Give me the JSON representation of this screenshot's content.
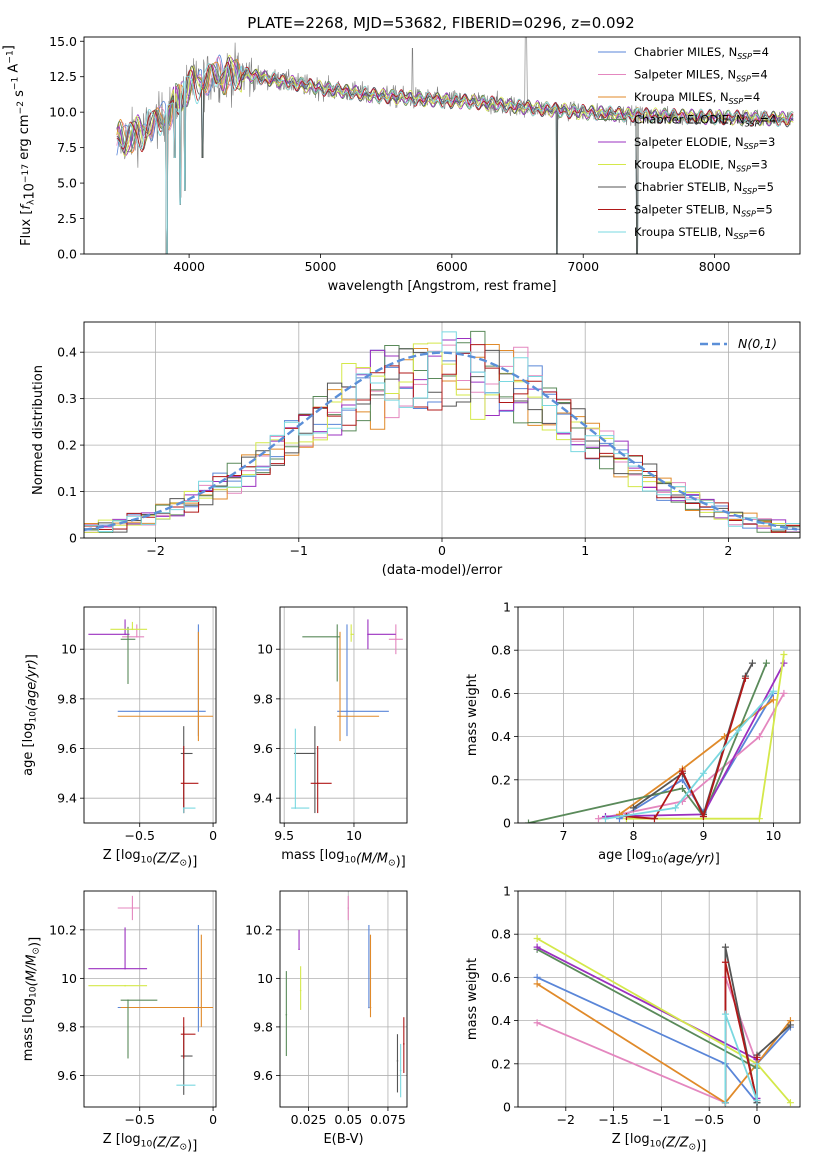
{
  "figure": {
    "title": "PLATE=2268, MJD=53682, FIBERID=0296, z=0.092"
  },
  "series": [
    {
      "name": "Chabrier MILES, N_{SSP}=4",
      "label": "Chabrier MILES, N",
      "ssp": "4",
      "color": "#5a86d8"
    },
    {
      "name": "Salpeter MILES, N_{SSP}=4",
      "label": "Salpeter MILES, N",
      "ssp": "4",
      "color": "#e487bf"
    },
    {
      "name": "Kroupa MILES, N_{SSP}=4",
      "label": "Kroupa MILES, N",
      "ssp": "4",
      "color": "#e08a2a"
    },
    {
      "name": "Chabrier ELODIE, N_{SSP}=4",
      "label": "Chabrier ELODIE, N",
      "ssp": "4",
      "color": "#5a8a5a"
    },
    {
      "name": "Salpeter ELODIE, N_{SSP}=3",
      "label": "Salpeter ELODIE, N",
      "ssp": "3",
      "color": "#9b30c0"
    },
    {
      "name": "Kroupa ELODIE, N_{SSP}=3",
      "label": "Kroupa ELODIE, N",
      "ssp": "3",
      "color": "#d4e84a"
    },
    {
      "name": "Chabrier STELIB, N_{SSP}=5",
      "label": "Chabrier STELIB, N",
      "ssp": "5",
      "color": "#555555"
    },
    {
      "name": "Salpeter STELIB, N_{SSP}=5",
      "label": "Salpeter STELIB, N",
      "ssp": "5",
      "color": "#b01818"
    },
    {
      "name": "Kroupa STELIB, N_{SSP}=6",
      "label": "Kroupa STELIB, N",
      "ssp": "6",
      "color": "#7ad8e0"
    }
  ],
  "chart_data": [
    {
      "id": "spectrum",
      "type": "line",
      "xlabel": "wavelength [Angstrom, rest frame]",
      "ylabel": "Flux [f_λ 10^-17 erg cm^-2 s^-1 A^-1]",
      "xlim": [
        3200,
        8650
      ],
      "ylim": [
        0,
        15.3
      ],
      "xticks": [
        4000,
        5000,
        6000,
        7000,
        8000
      ],
      "yticks": [
        0.0,
        2.5,
        5.0,
        7.5,
        10.0,
        12.5,
        15.0
      ],
      "continuum": {
        "x": [
          3450,
          3600,
          3800,
          4000,
          4200,
          4400,
          4700,
          5000,
          5400,
          5800,
          6200,
          6600,
          7000,
          7400,
          7800,
          8200,
          8600
        ],
        "y": [
          8.0,
          8.4,
          9.6,
          11.8,
          12.6,
          12.7,
          12.2,
          11.7,
          11.2,
          10.9,
          10.7,
          10.3,
          10.0,
          9.8,
          9.7,
          9.6,
          9.5
        ]
      },
      "absorption_features": [
        {
          "x": 3830,
          "y": 0.0
        },
        {
          "x": 3890,
          "y": 6.8
        },
        {
          "x": 3933,
          "y": 3.5
        },
        {
          "x": 3968,
          "y": 4.5
        },
        {
          "x": 4102,
          "y": 6.8
        },
        {
          "x": 6800,
          "y": 0.0
        },
        {
          "x": 7410,
          "y": 0.0
        }
      ],
      "legend_position": "upper right",
      "grid": false
    },
    {
      "id": "residual-histogram",
      "type": "line",
      "xlabel": "(data-model)/error",
      "ylabel": "Normed distribution",
      "xlim": [
        -2.5,
        2.5
      ],
      "ylim": [
        0,
        0.465
      ],
      "xticks": [
        -2,
        -1,
        0,
        1,
        2
      ],
      "yticks": [
        0.0,
        0.1,
        0.2,
        0.3,
        0.4
      ],
      "bin_width": 0.1,
      "gaussian": {
        "label": "N(0,1)",
        "mu": 0,
        "sigma": 1
      },
      "legend_position": "upper right",
      "grid": true
    },
    {
      "id": "age-vs-z",
      "type": "scatter",
      "xlabel": "Z [log10(Z/Z⊙)]",
      "ylabel": "age [log10(age/yr)]",
      "xlim": [
        -0.88,
        0.02
      ],
      "ylim": [
        9.3,
        10.17
      ],
      "xticks": [
        -0.5,
        0.0
      ],
      "yticks": [
        9.4,
        9.6,
        9.8,
        10.0
      ],
      "points": [
        {
          "s": 0,
          "x": -0.1,
          "xe": [
            0.55,
            0.05
          ],
          "y": 9.75,
          "ye": [
            0.1,
            0.35
          ]
        },
        {
          "s": 1,
          "x": -0.52,
          "xe": [
            0.1,
            0.05
          ],
          "y": 10.05,
          "ye": [
            0.0,
            0.05
          ]
        },
        {
          "s": 2,
          "x": -0.1,
          "xe": [
            0.55,
            0.1
          ],
          "y": 9.73,
          "ye": [
            0.1,
            0.34
          ]
        },
        {
          "s": 3,
          "x": -0.58,
          "xe": [
            0.05,
            0.05
          ],
          "y": 10.04,
          "ye": [
            0.18,
            0.05
          ]
        },
        {
          "s": 4,
          "x": -0.6,
          "xe": [
            0.25,
            0.03
          ],
          "y": 10.06,
          "ye": [
            0.0,
            0.06
          ]
        },
        {
          "s": 5,
          "x": -0.55,
          "xe": [
            0.15,
            0.1
          ],
          "y": 10.08,
          "ye": [
            0.0,
            0.03
          ]
        },
        {
          "s": 6,
          "x": -0.2,
          "xe": [
            0.02,
            0.06
          ],
          "y": 9.58,
          "ye": [
            0.24,
            0.11
          ]
        },
        {
          "s": 7,
          "x": -0.2,
          "xe": [
            0.02,
            0.1
          ],
          "y": 9.46,
          "ye": [
            0.12,
            0.15
          ]
        },
        {
          "s": 8,
          "x": -0.2,
          "xe": [
            0.0,
            0.08
          ],
          "y": 9.36,
          "ye": [
            0.02,
            0.0
          ]
        }
      ],
      "grid": true
    },
    {
      "id": "age-vs-mass",
      "type": "scatter",
      "xlabel": "mass [log10(M/M⊙)]",
      "ylabel": "",
      "xlim": [
        9.47,
        10.38
      ],
      "ylim": [
        9.3,
        10.17
      ],
      "xticks": [
        9.5,
        10.0
      ],
      "yticks": [
        9.4,
        9.6,
        9.8,
        10.0
      ],
      "points": [
        {
          "s": 0,
          "x": 9.95,
          "xe": [
            0.07,
            0.3
          ],
          "y": 9.75,
          "ye": [
            0.1,
            0.35
          ]
        },
        {
          "s": 1,
          "x": 10.3,
          "xe": [
            0.05,
            0.05
          ],
          "y": 10.04,
          "ye": [
            0.06,
            0.06
          ]
        },
        {
          "s": 2,
          "x": 9.9,
          "xe": [
            0.02,
            0.28
          ],
          "y": 9.73,
          "ye": [
            0.1,
            0.34
          ]
        },
        {
          "s": 3,
          "x": 9.88,
          "xe": [
            0.25,
            0.02
          ],
          "y": 10.05,
          "ye": [
            0.18,
            0.05
          ]
        },
        {
          "s": 4,
          "x": 10.1,
          "xe": [
            0.0,
            0.2
          ],
          "y": 10.06,
          "ye": [
            0.06,
            0.06
          ]
        },
        {
          "s": 5,
          "x": 9.98,
          "xe": [
            0.0,
            0.02
          ],
          "y": 10.06,
          "ye": [
            0.03,
            0.04
          ]
        },
        {
          "s": 6,
          "x": 9.72,
          "xe": [
            0.15,
            0.0
          ],
          "y": 9.58,
          "ye": [
            0.24,
            0.11
          ]
        },
        {
          "s": 7,
          "x": 9.74,
          "xe": [
            0.05,
            0.1
          ],
          "y": 9.46,
          "ye": [
            0.12,
            0.15
          ]
        },
        {
          "s": 8,
          "x": 9.58,
          "xe": [
            0.03,
            0.1
          ],
          "y": 9.36,
          "ye": [
            0.0,
            0.32
          ]
        }
      ],
      "grid": true
    },
    {
      "id": "mass-weight-vs-age",
      "type": "line",
      "xlabel": "age [log10(age/yr)]",
      "ylabel": "mass weight",
      "xlim": [
        6.35,
        10.38
      ],
      "ylim": [
        0,
        1.0
      ],
      "xticks": [
        7,
        8,
        9,
        10
      ],
      "yticks": [
        0.0,
        0.2,
        0.4,
        0.6,
        0.8,
        1.0
      ],
      "series_points": [
        {
          "s": 0,
          "x": [
            7.8,
            8.7,
            9.0,
            10.0
          ],
          "y": [
            0.02,
            0.2,
            0.05,
            0.6
          ]
        },
        {
          "s": 1,
          "x": [
            7.5,
            8.7,
            9.8,
            10.15
          ],
          "y": [
            0.02,
            0.1,
            0.4,
            0.6
          ]
        },
        {
          "s": 2,
          "x": [
            7.8,
            8.7,
            9.3,
            10.0
          ],
          "y": [
            0.04,
            0.25,
            0.4,
            0.57
          ]
        },
        {
          "s": 3,
          "x": [
            6.5,
            8.7,
            9.0,
            9.9
          ],
          "y": [
            0.0,
            0.16,
            0.03,
            0.74
          ]
        },
        {
          "s": 4,
          "x": [
            7.6,
            9.0,
            10.15
          ],
          "y": [
            0.03,
            0.04,
            0.74
          ]
        },
        {
          "s": 5,
          "x": [
            7.9,
            9.8,
            10.15
          ],
          "y": [
            0.02,
            0.02,
            0.78
          ]
        },
        {
          "s": 6,
          "x": [
            8.0,
            8.7,
            9.0,
            9.6,
            9.7
          ],
          "y": [
            0.07,
            0.23,
            0.04,
            0.68,
            0.74
          ]
        },
        {
          "s": 7,
          "x": [
            7.9,
            8.3,
            8.7,
            9.0,
            9.6
          ],
          "y": [
            0.03,
            0.02,
            0.24,
            0.03,
            0.67
          ]
        },
        {
          "s": 8,
          "x": [
            7.6,
            8.6,
            9.0,
            9.5,
            10.0
          ],
          "y": [
            0.02,
            0.07,
            0.23,
            0.43,
            0.61
          ]
        }
      ],
      "grid": true
    },
    {
      "id": "mass-vs-z",
      "type": "scatter",
      "xlabel": "Z [log10(Z/Z⊙)]",
      "ylabel": "mass [log10(M/M⊙)]",
      "xlim": [
        -0.88,
        0.02
      ],
      "ylim": [
        9.47,
        10.36
      ],
      "xticks": [
        -0.5,
        0.0
      ],
      "yticks": [
        9.6,
        9.8,
        10.0,
        10.2
      ],
      "points": [
        {
          "s": 0,
          "x": -0.1,
          "xe": [
            0.55,
            0.05
          ],
          "y": 9.88,
          "ye": [
            0.1,
            0.34
          ]
        },
        {
          "s": 1,
          "x": -0.55,
          "xe": [
            0.1,
            0.05
          ],
          "y": 10.29,
          "ye": [
            0.05,
            0.05
          ]
        },
        {
          "s": 2,
          "x": -0.08,
          "xe": [
            0.55,
            0.08
          ],
          "y": 9.88,
          "ye": [
            0.08,
            0.3
          ]
        },
        {
          "s": 3,
          "x": -0.58,
          "xe": [
            0.05,
            0.2
          ],
          "y": 9.91,
          "ye": [
            0.24,
            0.0
          ]
        },
        {
          "s": 4,
          "x": -0.6,
          "xe": [
            0.25,
            0.15
          ],
          "y": 10.04,
          "ye": [
            0.0,
            0.17
          ]
        },
        {
          "s": 5,
          "x": -0.6,
          "xe": [
            0.25,
            0.15
          ],
          "y": 9.97,
          "ye": [
            0.0,
            0.0
          ]
        },
        {
          "s": 6,
          "x": -0.2,
          "xe": [
            0.02,
            0.06
          ],
          "y": 9.68,
          "ye": [
            0.16,
            0.12
          ]
        },
        {
          "s": 7,
          "x": -0.2,
          "xe": [
            0.02,
            0.08
          ],
          "y": 9.77,
          "ye": [
            0.1,
            0.07
          ]
        },
        {
          "s": 8,
          "x": -0.2,
          "xe": [
            0.05,
            0.08
          ],
          "y": 9.56,
          "ye": [
            0.0,
            0.0
          ]
        }
      ],
      "grid": true
    },
    {
      "id": "mass-vs-ebv",
      "type": "scatter",
      "xlabel": "E(B-V)",
      "ylabel": "",
      "xlim": [
        0.007,
        0.087
      ],
      "ylim": [
        9.47,
        10.36
      ],
      "xticks": [
        0.025,
        0.05,
        0.075
      ],
      "yticks": [
        9.6,
        9.8,
        10.0,
        10.2
      ],
      "points": [
        {
          "s": 0,
          "x": 0.063,
          "xe": [
            0,
            0
          ],
          "y": 9.88,
          "ye": [
            0.0,
            0.34
          ]
        },
        {
          "s": 1,
          "x": 0.05,
          "xe": [
            0,
            0
          ],
          "y": 10.29,
          "ye": [
            0.05,
            0.05
          ]
        },
        {
          "s": 2,
          "x": 0.064,
          "xe": [
            0,
            0
          ],
          "y": 9.88,
          "ye": [
            0.04,
            0.3
          ]
        },
        {
          "s": 3,
          "x": 0.011,
          "xe": [
            0,
            0
          ],
          "y": 9.85,
          "ye": [
            0.17,
            0.18
          ]
        },
        {
          "s": 4,
          "x": 0.019,
          "xe": [
            0,
            0
          ],
          "y": 10.12,
          "ye": [
            0.0,
            0.08
          ]
        },
        {
          "s": 5,
          "x": 0.02,
          "xe": [
            0,
            0
          ],
          "y": 9.95,
          "ye": [
            0.08,
            0.1
          ]
        },
        {
          "s": 6,
          "x": 0.081,
          "xe": [
            0,
            0
          ],
          "y": 9.66,
          "ye": [
            0.13,
            0.11
          ]
        },
        {
          "s": 7,
          "x": 0.085,
          "xe": [
            0,
            0
          ],
          "y": 9.73,
          "ye": [
            0.12,
            0.11
          ]
        },
        {
          "s": 8,
          "x": 0.083,
          "xe": [
            0,
            0
          ],
          "y": 9.62,
          "ye": [
            0.11,
            0.11
          ]
        }
      ],
      "grid": true
    },
    {
      "id": "mass-weight-vs-z",
      "type": "line",
      "xlabel": "Z [log10(Z/Z⊙)]",
      "ylabel": "mass weight",
      "xlim": [
        -2.5,
        0.45
      ],
      "ylim": [
        0,
        1.0
      ],
      "xticks": [
        -2.0,
        -1.5,
        -1.0,
        -0.5,
        0.0
      ],
      "yticks": [
        0.0,
        0.2,
        0.4,
        0.6,
        0.8,
        1.0
      ],
      "series_points": [
        {
          "s": 0,
          "x": [
            -2.3,
            -0.33,
            0.0,
            0.0,
            0.35
          ],
          "y": [
            0.6,
            0.2,
            0.02,
            0.2,
            0.37
          ]
        },
        {
          "s": 1,
          "x": [
            -2.3,
            -0.33,
            -0.33,
            0.0
          ],
          "y": [
            0.39,
            0.02,
            0.6,
            0.2
          ]
        },
        {
          "s": 2,
          "x": [
            -2.3,
            -0.33,
            0.0,
            0.35
          ],
          "y": [
            0.57,
            0.02,
            0.2,
            0.4
          ]
        },
        {
          "s": 3,
          "x": [
            -2.3,
            0.0,
            0.0
          ],
          "y": [
            0.73,
            0.18,
            0.02
          ]
        },
        {
          "s": 4,
          "x": [
            -2.3,
            0.0,
            0.0
          ],
          "y": [
            0.74,
            0.22,
            0.04
          ]
        },
        {
          "s": 5,
          "x": [
            -2.3,
            0.0,
            0.35
          ],
          "y": [
            0.78,
            0.2,
            0.02
          ]
        },
        {
          "s": 6,
          "x": [
            -0.33,
            -0.33,
            0.0,
            0.0,
            0.35
          ],
          "y": [
            0.02,
            0.74,
            0.02,
            0.24,
            0.38
          ]
        },
        {
          "s": 7,
          "x": [
            -0.33,
            -0.33,
            0.0,
            0.0
          ],
          "y": [
            0.02,
            0.67,
            0.03,
            0.23
          ]
        },
        {
          "s": 8,
          "x": [
            -0.33,
            -0.33,
            0.0,
            0.0
          ],
          "y": [
            0.02,
            0.43,
            0.03,
            0.2
          ]
        }
      ],
      "grid": true
    }
  ]
}
